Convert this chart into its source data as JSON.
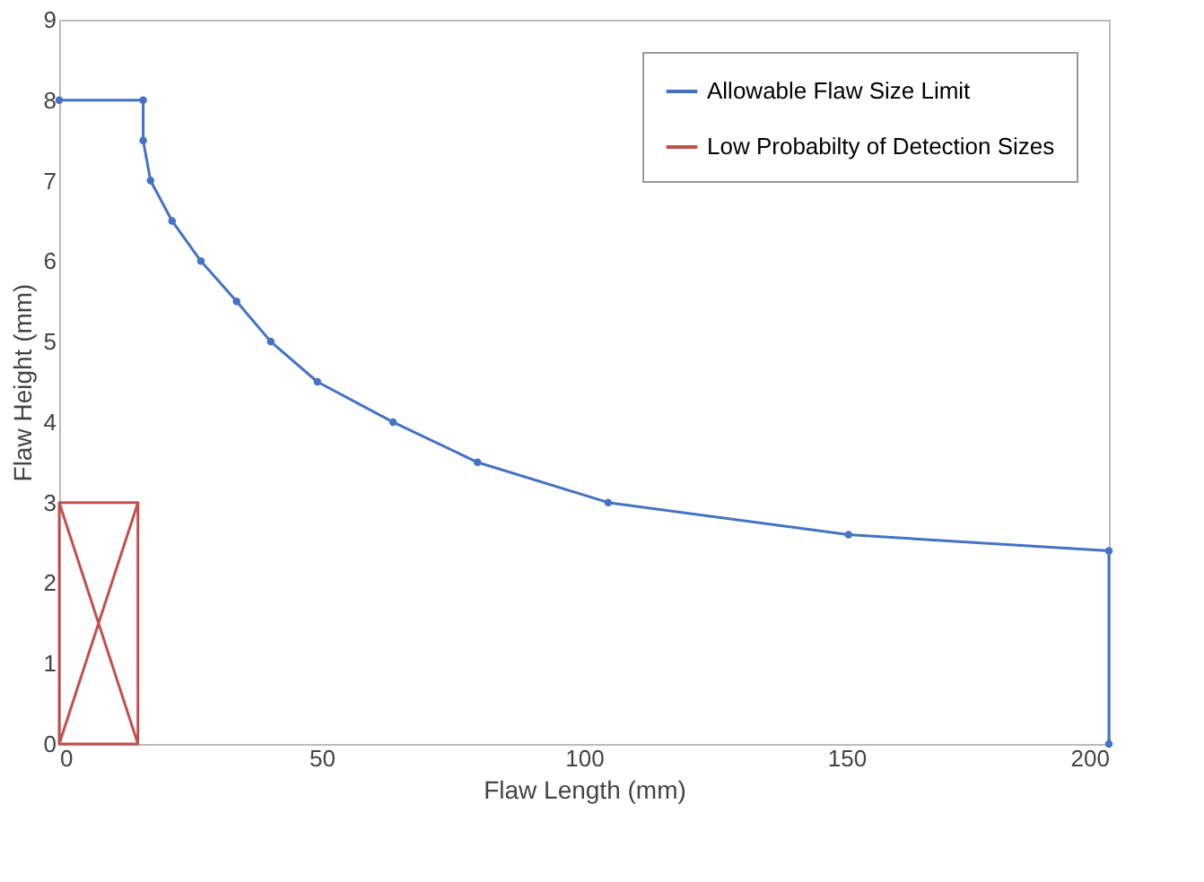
{
  "chart_data": {
    "type": "line",
    "xlabel": "Flaw Length (mm)",
    "ylabel": "Flaw Height (mm)",
    "xlim": [
      0,
      200
    ],
    "ylim": [
      0,
      9
    ],
    "xticks": [
      0,
      50,
      100,
      150,
      200
    ],
    "yticks": [
      0,
      1,
      2,
      3,
      4,
      5,
      6,
      7,
      8,
      9
    ],
    "grid": false,
    "legend": "top right",
    "series": [
      {
        "name": "Allowable Flaw Size Limit",
        "color": "#4472c4",
        "marker": "circle",
        "x": [
          0,
          16,
          16,
          17.4,
          21.5,
          27,
          33.8,
          40.3,
          49.2,
          63.6,
          79.7,
          104.6,
          150.4,
          200,
          200
        ],
        "values": [
          8,
          8,
          7.5,
          7,
          6.5,
          6,
          5.5,
          5,
          4.5,
          4,
          3.5,
          3,
          2.6,
          2.4,
          0
        ]
      },
      {
        "name": "Low Probabilty of Detection Sizes",
        "color": "#c0504d",
        "marker": "none",
        "x": [
          0,
          0,
          15,
          15,
          0,
          15,
          15,
          0
        ],
        "values": [
          0,
          3,
          3,
          0,
          0,
          3,
          0,
          3
        ]
      }
    ]
  }
}
